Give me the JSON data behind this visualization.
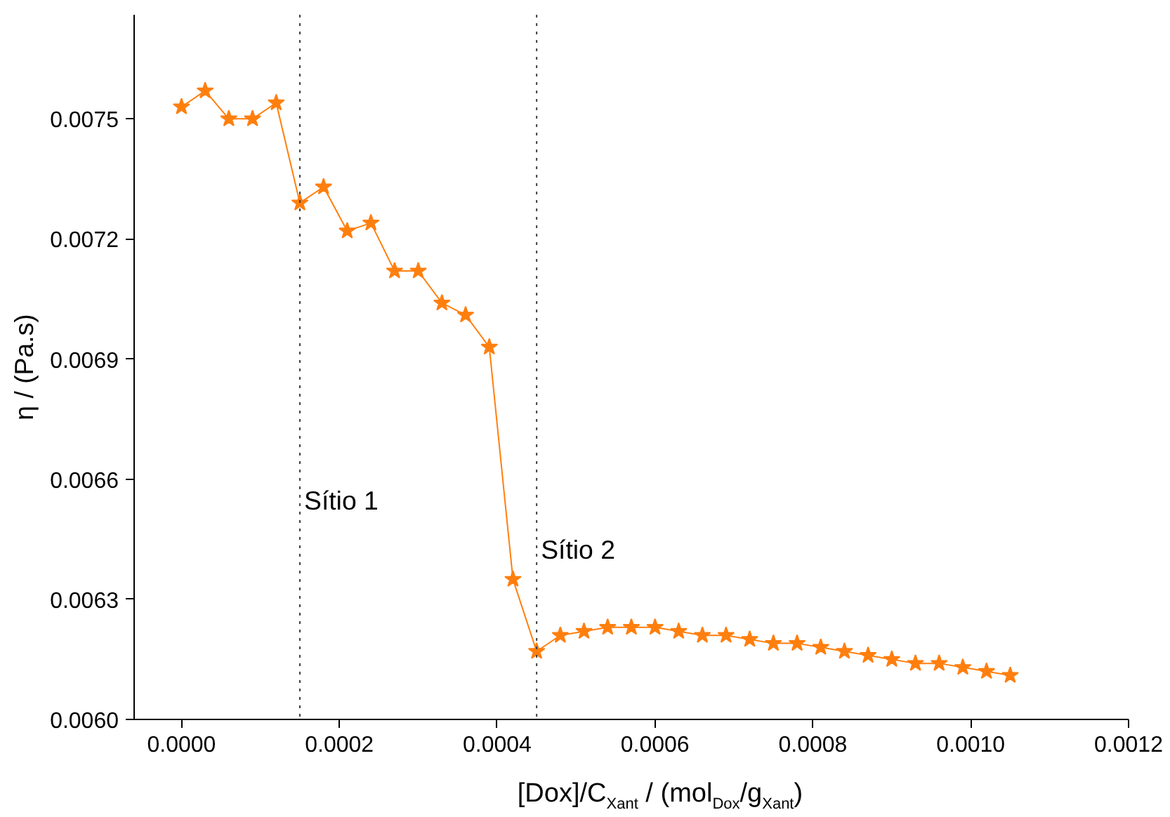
{
  "chart_data": {
    "type": "line",
    "xlabel": "[Dox]/C$_{Xant}$ / (mol$_{Dox}$/g$_{Xant}$)",
    "ylabel": "η / (Pa.s)",
    "x": [
      0,
      3e-05,
      6e-05,
      9e-05,
      0.00012,
      0.00015,
      0.00018,
      0.00021,
      0.00024,
      0.00027,
      0.0003,
      0.00033,
      0.00036,
      0.00039,
      0.00042,
      0.00045,
      0.00048,
      0.00051,
      0.00054,
      0.00057,
      0.0006,
      0.00063,
      0.00066,
      0.00069,
      0.00072,
      0.00075,
      0.00078,
      0.00081,
      0.00084,
      0.00087,
      0.0009,
      0.00093,
      0.00096,
      0.00099,
      0.00102,
      0.00105
    ],
    "series": [
      {
        "color": "#ff7f0e",
        "values": [
          0.00753,
          0.00757,
          0.0075,
          0.0075,
          0.00754,
          0.00729,
          0.00733,
          0.00722,
          0.00724,
          0.00712,
          0.00712,
          0.00704,
          0.00701,
          0.00693,
          0.00635,
          0.00617,
          0.00621,
          0.00622,
          0.00623,
          0.00623,
          0.00623,
          0.00622,
          0.00621,
          0.00621,
          0.0062,
          0.00619,
          0.00619,
          0.00618,
          0.00617,
          0.00616,
          0.00615,
          0.00614,
          0.00614,
          0.00613,
          0.00612,
          0.00611
        ]
      }
    ],
    "marker": "star",
    "line_style": "solid",
    "grid": false,
    "xlim": [
      -6e-05,
      0.0012
    ],
    "ylim": [
      0.006,
      0.00776
    ],
    "xticks": [
      {
        "value": 0,
        "label": "0.0000"
      },
      {
        "value": 0.0002,
        "label": "0.0002"
      },
      {
        "value": 0.0004,
        "label": "0.0004"
      },
      {
        "value": 0.0006,
        "label": "0.0006"
      },
      {
        "value": 0.0008,
        "label": "0.0008"
      },
      {
        "value": 0.001,
        "label": "0.0010"
      },
      {
        "value": 0.0012,
        "label": "0.0012"
      }
    ],
    "yticks": [
      {
        "value": 0.006,
        "label": "0.0060"
      },
      {
        "value": 0.0063,
        "label": "0.0063"
      },
      {
        "value": 0.0066,
        "label": "0.0066"
      },
      {
        "value": 0.0069,
        "label": "0.0069"
      },
      {
        "value": 0.0072,
        "label": "0.0072"
      },
      {
        "value": 0.0075,
        "label": "0.0075"
      }
    ],
    "ref_lines": [
      {
        "axis": "x",
        "value": 0.00015,
        "label": "Sítio 1",
        "color": "#404040",
        "line_style": "dotted"
      },
      {
        "axis": "x",
        "value": 0.00045,
        "label": "Sítio 2",
        "color": "#404040",
        "line_style": "dotted"
      }
    ]
  }
}
